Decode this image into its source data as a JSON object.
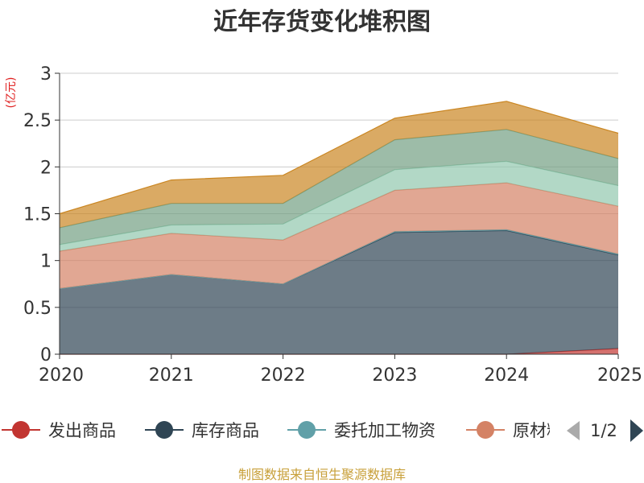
{
  "chart_data": {
    "type": "area",
    "stacked": true,
    "title": "近年存货变化堆积图",
    "ylabel": "(亿元)",
    "xlabel": "",
    "ylim": [
      0,
      3
    ],
    "yticks": [
      "0",
      "0.5",
      "1",
      "1.5",
      "2",
      "2.5",
      "3"
    ],
    "categories": [
      "2020",
      "2021",
      "2022",
      "2023",
      "2024",
      "2025"
    ],
    "grid": true,
    "legend": {
      "position": "bottom",
      "page": "1/2",
      "visible_labels": [
        "发出商品",
        "库存商品",
        "委托加工物资",
        "原材料"
      ]
    },
    "series": [
      {
        "name": "发出商品",
        "color": "#c23531",
        "values": [
          0,
          0,
          0,
          0,
          0,
          0.06
        ]
      },
      {
        "name": "库存商品",
        "color": "#2f4554",
        "values": [
          0.7,
          0.85,
          0.75,
          1.3,
          1.32,
          1.0
        ]
      },
      {
        "name": "委托加工物资",
        "color": "#61a0a8",
        "values": [
          0,
          0,
          0,
          0.01,
          0.01,
          0.01
        ]
      },
      {
        "name": "原材料",
        "color": "#d48265",
        "values": [
          0.4,
          0.44,
          0.47,
          0.44,
          0.5,
          0.51
        ]
      },
      {
        "name": "",
        "color": "#91c7ae",
        "values": [
          0.07,
          0.09,
          0.17,
          0.22,
          0.23,
          0.22
        ]
      },
      {
        "name": "",
        "color": "#749f83",
        "values": [
          0.18,
          0.23,
          0.22,
          0.32,
          0.34,
          0.29
        ]
      },
      {
        "name": "",
        "color": "#ca8622",
        "values": [
          0.15,
          0.25,
          0.3,
          0.23,
          0.3,
          0.27
        ]
      }
    ]
  },
  "footer": "制图数据来自恒生聚源数据库",
  "legend_nav": {
    "prev_color": "#aaaaaa",
    "next_color": "#2f4554"
  }
}
